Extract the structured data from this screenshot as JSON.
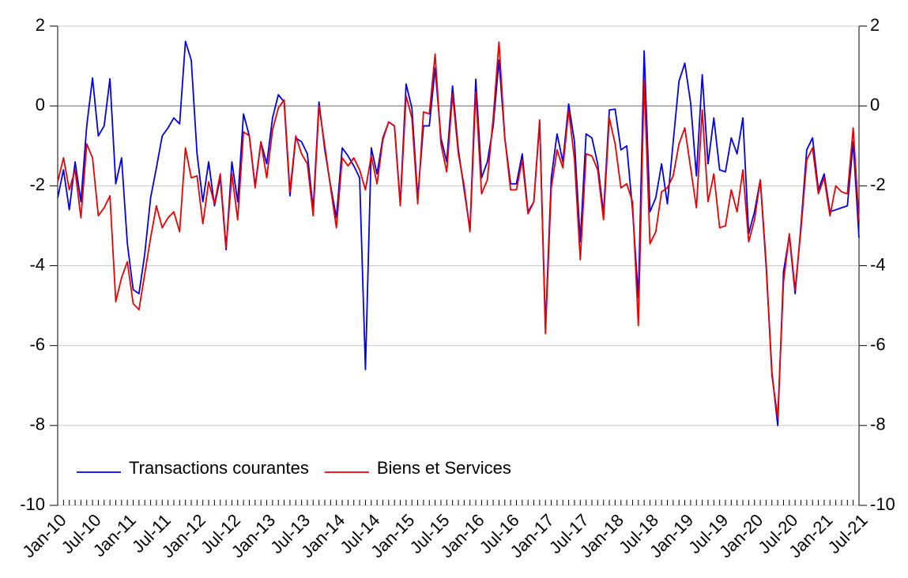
{
  "chart_data": {
    "type": "line",
    "categories": [
      "Jan-10",
      null,
      null,
      null,
      null,
      null,
      "Jul-10",
      null,
      null,
      null,
      null,
      null,
      "Jan-11",
      null,
      null,
      null,
      null,
      null,
      "Jul-11",
      null,
      null,
      null,
      null,
      null,
      "Jan-12",
      null,
      null,
      null,
      null,
      null,
      "Jul-12",
      null,
      null,
      null,
      null,
      null,
      "Jan-13",
      null,
      null,
      null,
      null,
      null,
      "Jul-13",
      null,
      null,
      null,
      null,
      null,
      "Jan-14",
      null,
      null,
      null,
      null,
      null,
      "Jul-14",
      null,
      null,
      null,
      null,
      null,
      "Jan-15",
      null,
      null,
      null,
      null,
      null,
      "Jul-15",
      null,
      null,
      null,
      null,
      null,
      "Jan-16",
      null,
      null,
      null,
      null,
      null,
      "Jul-16",
      null,
      null,
      null,
      null,
      null,
      "Jan-17",
      null,
      null,
      null,
      null,
      null,
      "Jul-17",
      null,
      null,
      null,
      null,
      null,
      "Jan-18",
      null,
      null,
      null,
      null,
      null,
      "Jul-18",
      null,
      null,
      null,
      null,
      null,
      "Jan-19",
      null,
      null,
      null,
      null,
      null,
      "Jul-19",
      null,
      null,
      null,
      null,
      null,
      "Jan-20",
      null,
      null,
      null,
      null,
      null,
      "Jul-20",
      null,
      null,
      null,
      null,
      null,
      "Jan-21",
      null,
      null,
      null,
      null,
      null,
      "Jul-21"
    ],
    "series": [
      {
        "name": "Transactions courantes",
        "color": "#0000ee",
        "values": [
          -2.3,
          -1.6,
          -2.6,
          -1.4,
          -2.4,
          -0.5,
          0.7,
          -0.75,
          -0.5,
          0.68,
          -1.95,
          -1.3,
          -3.45,
          -4.6,
          -4.7,
          -3.7,
          -2.3,
          -1.55,
          -0.75,
          -0.55,
          -0.3,
          -0.45,
          1.62,
          1.15,
          -1.2,
          -2.4,
          -1.4,
          -2.5,
          -1.8,
          -3.6,
          -1.4,
          -2.4,
          -0.2,
          -0.75,
          -2.0,
          -0.9,
          -1.45,
          -0.3,
          0.28,
          0.1,
          -2.25,
          -0.8,
          -0.9,
          -1.2,
          -2.6,
          0.1,
          -1.1,
          -2.0,
          -2.8,
          -1.05,
          -1.25,
          -1.5,
          -1.8,
          -6.6,
          -1.05,
          -1.7,
          -0.8,
          -0.4,
          -0.5,
          -2.45,
          0.55,
          -0.05,
          -2.3,
          -0.5,
          -0.5,
          0.95,
          -0.8,
          -1.4,
          0.5,
          -1.1,
          -2.1,
          -3.1,
          0.67,
          -1.8,
          -1.4,
          -0.5,
          1.15,
          -0.8,
          -1.95,
          -1.95,
          -1.2,
          -2.65,
          -2.4,
          -0.4,
          -5.55,
          -1.8,
          -0.7,
          -1.4,
          0.05,
          -0.9,
          -3.4,
          -0.7,
          -0.8,
          -1.45,
          -2.7,
          -0.1,
          -0.08,
          -1.1,
          -1.0,
          -2.6,
          -4.8,
          1.38,
          -2.65,
          -2.3,
          -1.45,
          -2.45,
          -0.9,
          0.62,
          1.07,
          0.08,
          -1.75,
          0.78,
          -1.45,
          -0.3,
          -1.6,
          -1.65,
          -0.8,
          -1.2,
          -0.3,
          -3.2,
          -2.65,
          -1.85,
          -4.0,
          -6.65,
          -8.0,
          -4.15,
          -3.25,
          -4.7,
          -3.0,
          -1.1,
          -0.8,
          -2.1,
          -1.7,
          -2.65,
          -2.6,
          -2.55,
          -2.5,
          -0.9,
          -3.3
        ]
      },
      {
        "name": "Biens et Services",
        "color": "#ee0000",
        "values": [
          -1.9,
          -1.3,
          -2.1,
          -1.6,
          -2.8,
          -0.95,
          -1.3,
          -2.75,
          -2.55,
          -2.25,
          -4.9,
          -4.3,
          -3.9,
          -4.95,
          -5.1,
          -4.2,
          -3.3,
          -2.5,
          -3.05,
          -2.8,
          -2.65,
          -3.15,
          -1.05,
          -1.8,
          -1.75,
          -2.95,
          -1.9,
          -2.45,
          -1.7,
          -3.55,
          -1.7,
          -2.85,
          -0.65,
          -0.75,
          -2.05,
          -0.9,
          -1.8,
          -0.6,
          -0.05,
          0.15,
          -2.15,
          -0.75,
          -1.2,
          -1.45,
          -2.75,
          0,
          -1.0,
          -2.05,
          -3.05,
          -1.3,
          -1.5,
          -1.3,
          -1.6,
          -2.1,
          -1.25,
          -1.95,
          -0.85,
          -0.4,
          -0.5,
          -2.5,
          0.25,
          -0.3,
          -2.45,
          -0.15,
          -0.2,
          1.3,
          -0.95,
          -1.65,
          0.3,
          -1.2,
          -2.0,
          -3.15,
          0.35,
          -2.2,
          -1.85,
          -0.3,
          1.6,
          -0.8,
          -2.1,
          -2.1,
          -1.35,
          -2.7,
          -2.4,
          -0.35,
          -5.7,
          -2.05,
          -1.1,
          -1.55,
          -0.1,
          -1.35,
          -3.85,
          -1.2,
          -1.25,
          -1.6,
          -2.85,
          -0.3,
          -0.95,
          -2.05,
          -1.95,
          -2.4,
          -5.5,
          0.65,
          -3.45,
          -3.15,
          -2.15,
          -2.05,
          -1.75,
          -0.95,
          -0.55,
          -1.55,
          -2.55,
          -0.1,
          -2.4,
          -1.7,
          -3.05,
          -3.0,
          -2.1,
          -2.65,
          -1.6,
          -3.4,
          -2.85,
          -1.85,
          -3.9,
          -6.75,
          -7.8,
          -4.4,
          -3.2,
          -4.6,
          -3.1,
          -1.35,
          -1.05,
          -2.2,
          -1.8,
          -2.75,
          -2.0,
          -2.15,
          -2.2,
          -0.55,
          -2.9
        ]
      }
    ],
    "ylim": [
      -10,
      2
    ],
    "yticks": [
      -10,
      -8,
      -6,
      -4,
      -2,
      0,
      2
    ],
    "y2lim": [
      -10,
      2
    ],
    "y2ticks": [
      -10,
      -8,
      -6,
      -4,
      -2,
      0,
      2
    ],
    "grid": true,
    "legend": "bottom-left"
  }
}
